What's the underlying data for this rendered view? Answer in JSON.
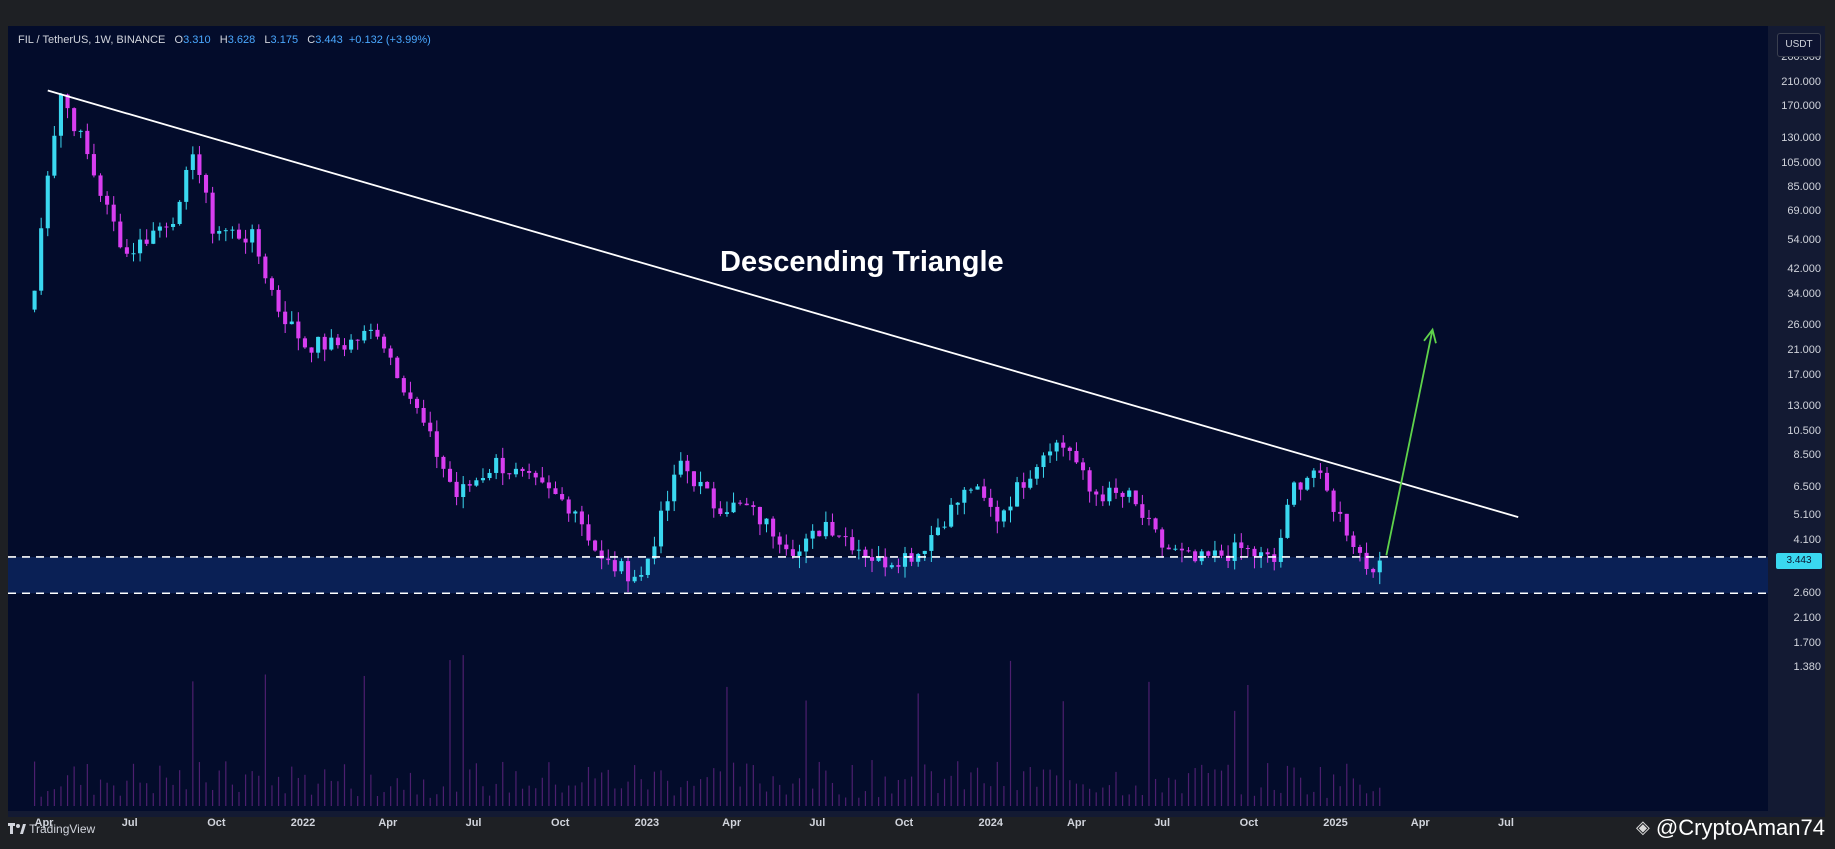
{
  "header": {
    "symbol": "FIL / TetherUS, 1W, BINANCE",
    "open_label": "O",
    "open": "3.310",
    "high_label": "H",
    "high": "3.628",
    "low_label": "L",
    "low": "3.175",
    "close_label": "C",
    "close": "3.443",
    "change": "+0.132 (+3.99%)"
  },
  "currency": "USDT",
  "price_badge": "3.443",
  "footer": {
    "brand": "TradingView",
    "watermark": "@CryptoAman74"
  },
  "chart_data": {
    "type": "candlestick",
    "title": "Descending Triangle",
    "y_scale": "log",
    "y_ticks": [
      "260.000",
      "210.000",
      "170.000",
      "130.000",
      "105.000",
      "85.000",
      "69.000",
      "54.000",
      "42.000",
      "34.000",
      "26.000",
      "21.000",
      "17.000",
      "13.000",
      "10.500",
      "8.500",
      "6.500",
      "5.100",
      "4.100",
      "3.443",
      "2.600",
      "2.100",
      "1.700",
      "1.380"
    ],
    "x_ticks": [
      "Apr",
      "Jul",
      "Oct",
      "2022",
      "Apr",
      "Jul",
      "Oct",
      "2023",
      "Apr",
      "Jul",
      "Oct",
      "2024",
      "Apr",
      "Jul",
      "Oct",
      "2025",
      "Apr",
      "Jul"
    ],
    "x_range": [
      "2021-03",
      "2025-07"
    ],
    "y_range": [
      1.3,
      300
    ],
    "price_path": [
      [
        "2021-03-22",
        35
      ],
      [
        "2021-04-05",
        100
      ],
      [
        "2021-04-19",
        190
      ],
      [
        "2021-05-10",
        130
      ],
      [
        "2021-06-07",
        70
      ],
      [
        "2021-06-28",
        48
      ],
      [
        "2021-08-23",
        70
      ],
      [
        "2021-09-06",
        120
      ],
      [
        "2021-09-27",
        60
      ],
      [
        "2021-11-08",
        55
      ],
      [
        "2021-12-06",
        30
      ],
      [
        "2022-01-03",
        22
      ],
      [
        "2022-02-14",
        22
      ],
      [
        "2022-03-21",
        25
      ],
      [
        "2022-04-25",
        14
      ],
      [
        "2022-06-13",
        6
      ],
      [
        "2022-07-25",
        8
      ],
      [
        "2022-08-29",
        6.8
      ],
      [
        "2022-10-17",
        5.4
      ],
      [
        "2022-11-14",
        3.4
      ],
      [
        "2022-12-26",
        3.0
      ],
      [
        "2023-02-06",
        8.0
      ],
      [
        "2023-03-13",
        5.6
      ],
      [
        "2023-04-17",
        5.4
      ],
      [
        "2023-06-12",
        3.7
      ],
      [
        "2023-07-10",
        4.8
      ],
      [
        "2023-09-04",
        3.4
      ],
      [
        "2023-10-16",
        3.7
      ],
      [
        "2023-11-13",
        5.0
      ],
      [
        "2023-12-11",
        6.5
      ],
      [
        "2024-01-08",
        5.0
      ],
      [
        "2024-03-04",
        9.5
      ],
      [
        "2024-03-25",
        9.0
      ],
      [
        "2024-04-15",
        6.2
      ],
      [
        "2024-05-27",
        5.9
      ],
      [
        "2024-07-01",
        3.9
      ],
      [
        "2024-08-05",
        3.4
      ],
      [
        "2024-09-23",
        3.8
      ],
      [
        "2024-10-28",
        3.4
      ],
      [
        "2024-11-18",
        6.5
      ],
      [
        "2024-12-09",
        7.5
      ],
      [
        "2025-01-06",
        5.0
      ],
      [
        "2025-02-03",
        3.3
      ],
      [
        "2025-02-17",
        3.443
      ]
    ],
    "resistance_line": {
      "from": [
        "2021-04-05",
        195
      ],
      "to": [
        "2025-07-14",
        5.0
      ]
    },
    "support_zone": {
      "upper": 3.55,
      "lower": 2.6
    },
    "projection_arrow": {
      "from": [
        "2025-02-24",
        3.6
      ],
      "to": [
        "2025-04-14",
        25
      ]
    },
    "colors": {
      "background": "#030c2b",
      "up": "#3ad8f0",
      "down": "#d83ef0",
      "resistance_line": "#ffffff",
      "support_lines": "#ffffff",
      "support_fill": "#0c2560",
      "arrow": "#5fd34b",
      "volume": "#8a2fa8"
    }
  }
}
